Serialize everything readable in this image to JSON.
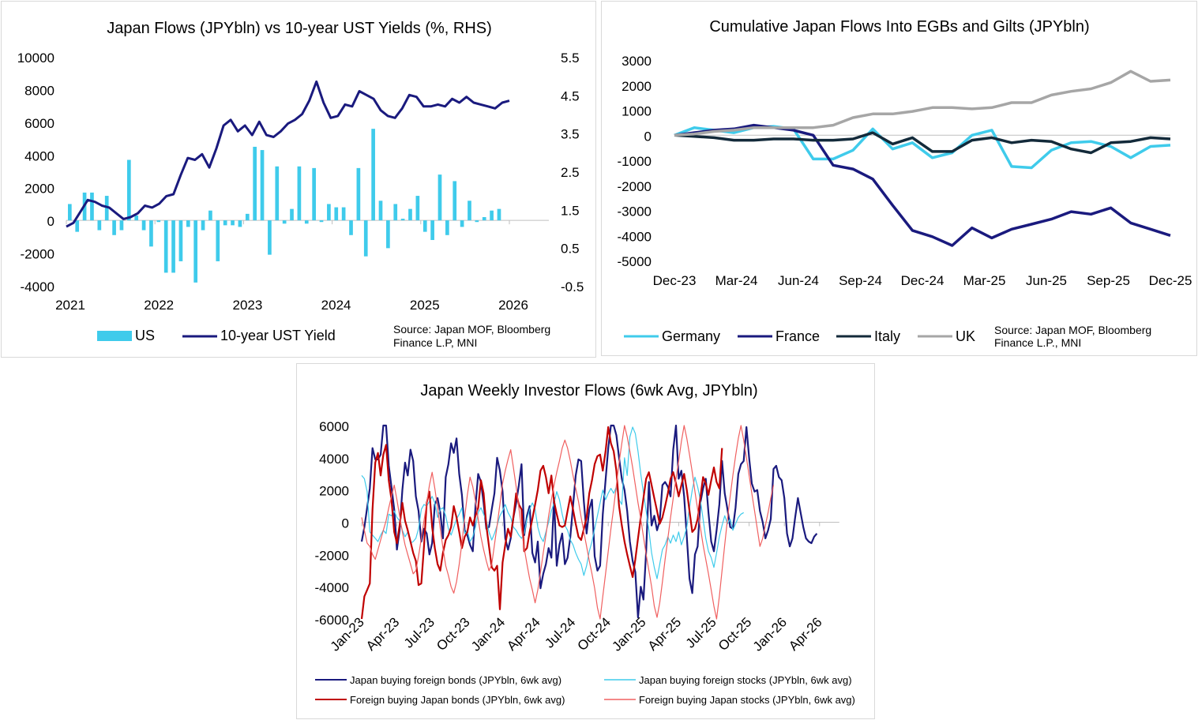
{
  "chart_data": [
    {
      "type": "bar+line",
      "title": "Japan Flows (JPYbln) vs 10-year UST Yields (%, RHS)",
      "x_ticks": [
        "2021",
        "2022",
        "2023",
        "2024",
        "2025",
        "2026"
      ],
      "y_left": {
        "min": -4000,
        "max": 10000,
        "ticks": [
          "10000",
          "8000",
          "6000",
          "4000",
          "2000",
          "0",
          "-2000",
          "-4000"
        ]
      },
      "y_right": {
        "min": -0.5,
        "max": 5.5,
        "ticks": [
          "5.5",
          "4.5",
          "3.5",
          "2.5",
          "1.5",
          "0.5",
          "-0.5"
        ]
      },
      "series": [
        {
          "name": "US",
          "kind": "bar",
          "axis": "left",
          "color": "#3fcbeb",
          "values": [
            1000,
            -700,
            1700,
            1700,
            -600,
            1500,
            -900,
            -600,
            3700,
            300,
            -600,
            -1600,
            -100,
            -3200,
            -3200,
            -2500,
            -400,
            -3800,
            -600,
            600,
            -2500,
            -300,
            -300,
            -400,
            400,
            4500,
            4300,
            -2100,
            3300,
            -200,
            700,
            3300,
            -200,
            3200,
            -100,
            1000,
            800,
            800,
            -900,
            3200,
            -2200,
            5600,
            1200,
            -1700,
            1000,
            100,
            700,
            1500,
            -700,
            -1200,
            2800,
            -900,
            2400,
            -400,
            1200,
            -100,
            200,
            600,
            700
          ]
        },
        {
          "name": "10-year UST Yield",
          "kind": "line",
          "axis": "right",
          "color": "#1a1a7e",
          "values": [
            1.05,
            1.15,
            1.45,
            1.75,
            1.7,
            1.6,
            1.55,
            1.4,
            1.25,
            1.3,
            1.4,
            1.6,
            1.55,
            1.65,
            1.85,
            1.9,
            2.4,
            2.85,
            2.8,
            2.95,
            2.6,
            3.1,
            3.7,
            3.85,
            3.55,
            3.7,
            3.45,
            3.8,
            3.45,
            3.4,
            3.55,
            3.75,
            3.85,
            4.0,
            4.35,
            4.85,
            4.3,
            3.9,
            3.95,
            4.25,
            4.2,
            4.6,
            4.5,
            4.4,
            4.1,
            3.95,
            3.9,
            4.15,
            4.5,
            4.45,
            4.2,
            4.2,
            4.25,
            4.2,
            4.4,
            4.3,
            4.45,
            4.3,
            4.25,
            4.2,
            4.15,
            4.3,
            4.35
          ]
        }
      ],
      "legend": [
        "US",
        "10-year UST Yield"
      ],
      "source": [
        "Source: Japan MOF, Bloomberg",
        "Finance L.P, MNI"
      ]
    },
    {
      "type": "line",
      "title": "Cumulative  Japan Flows Into EGBs and Gilts (JPYbln)",
      "x_ticks": [
        "Dec-23",
        "Mar-24",
        "Jun-24",
        "Sep-24",
        "Dec-24",
        "Mar-25",
        "Jun-25",
        "Sep-25",
        "Dec-25"
      ],
      "y": {
        "min": -5000,
        "max": 3000,
        "ticks": [
          "3000",
          "2000",
          "1000",
          "0",
          "-1000",
          "-2000",
          "-3000",
          "-4000",
          "-5000"
        ]
      },
      "series": [
        {
          "name": "Germany",
          "color": "#3fcbeb",
          "values": [
            0,
            300,
            200,
            100,
            300,
            350,
            250,
            -950,
            -950,
            -600,
            250,
            -550,
            -300,
            -900,
            -700,
            0,
            200,
            -1250,
            -1300,
            -600,
            -300,
            -250,
            -450,
            -900,
            -450,
            -400
          ]
        },
        {
          "name": "France",
          "color": "#1a1a7e",
          "values": [
            0,
            100,
            200,
            250,
            400,
            300,
            200,
            0,
            -1200,
            -1350,
            -1750,
            -2800,
            -3800,
            -4050,
            -4400,
            -3700,
            -4100,
            -3750,
            -3550,
            -3350,
            -3050,
            -3150,
            -2900,
            -3500,
            -3750,
            -4000
          ]
        },
        {
          "name": "Italy",
          "color": "#132a3a",
          "values": [
            0,
            -50,
            -100,
            -200,
            -200,
            -150,
            -150,
            -200,
            -200,
            -150,
            100,
            -350,
            -100,
            -650,
            -650,
            -200,
            -100,
            -300,
            -200,
            -250,
            -550,
            -700,
            -300,
            -250,
            -100,
            -150
          ]
        },
        {
          "name": "UK",
          "color": "#a6a6a6",
          "values": [
            0,
            50,
            150,
            200,
            300,
            300,
            300,
            300,
            400,
            700,
            850,
            850,
            950,
            1100,
            1100,
            1050,
            1100,
            1300,
            1300,
            1600,
            1750,
            1850,
            2100,
            2550,
            2150,
            2200
          ]
        }
      ],
      "legend": [
        "Germany",
        "France",
        "Italy",
        "UK"
      ],
      "source": [
        "Source: Japan MOF, Bloomberg",
        "Finance L.P., MNI"
      ]
    },
    {
      "type": "line",
      "title": "Japan Weekly Investor Flows (6wk Avg, JPYbln)",
      "x_ticks": [
        "Jan-23",
        "Apr-23",
        "Jul-23",
        "Oct-23",
        "Jan-24",
        "Apr-24",
        "Jul-24",
        "Oct-24",
        "Jan-25",
        "Apr-25",
        "Jul-25",
        "Oct-25",
        "Jan-26",
        "Apr-26"
      ],
      "y": {
        "min": -6000,
        "max": 6000,
        "ticks": [
          "6000",
          "4000",
          "2000",
          "0",
          "-2000",
          "-4000",
          "-6000"
        ]
      },
      "series": [
        {
          "name": "Japan buying foreign bonds (JPYbln, 6wk avg)",
          "color": "#1a1a7e",
          "values": [
            -1200,
            -300,
            900,
            2100,
            4600,
            3900,
            3900,
            4200,
            6000,
            6000,
            3500,
            2200,
            800,
            -1700,
            -500,
            2000,
            3700,
            2900,
            4500,
            3800,
            1600,
            700,
            -1200,
            -400,
            -700,
            -2000,
            -1300,
            1100,
            1500,
            600,
            -1000,
            2800,
            3600,
            4900,
            4300,
            5200,
            3000,
            1700,
            -500,
            -800,
            -1400,
            -1800,
            1000,
            3000,
            2500,
            1200,
            -400,
            -300,
            800,
            1800,
            4000,
            3200,
            1900,
            -1000,
            -1700,
            -1000,
            300,
            1200,
            2300,
            3600,
            -800,
            400,
            1000,
            -1900,
            -2500,
            -1200,
            -4100,
            -3200,
            -2600,
            -1600,
            -2200,
            1500,
            -2700,
            -1400,
            -700,
            -2600,
            -2200,
            -900,
            1000,
            2900,
            3900,
            3800,
            1300,
            -700,
            800,
            1400,
            -2100,
            -3000,
            -2700,
            500,
            2600,
            4600,
            6000,
            6000,
            5400,
            4000,
            2700,
            2000,
            700,
            -1200,
            -2400,
            -3100,
            -5900,
            -4000,
            -4800,
            -1800,
            2500,
            -200,
            400,
            -500,
            100,
            2300,
            2500,
            2200,
            1600,
            4500,
            6000,
            2700,
            3200,
            1600,
            -900,
            -3500,
            -4400,
            -2000,
            -1500,
            1200,
            2100,
            2700,
            600,
            -1200,
            -1800,
            -500,
            1100,
            3800,
            1800,
            800,
            -300,
            -400,
            900,
            3000,
            3600,
            3800,
            5900,
            4000,
            2400,
            1900,
            2000,
            700,
            0,
            -1000,
            -500,
            200,
            3300,
            3500,
            2800,
            2600,
            1500,
            -700,
            -1500,
            -1000,
            300,
            1500,
            600,
            -300,
            -1000,
            -1200,
            -1300,
            -900,
            -700
          ]
        },
        {
          "name": "Japan buying foreign stocks (JPYbln, 6wk avg)",
          "color": "#3fcbeb",
          "values": [
            2900,
            2700,
            1900,
            -600,
            -800,
            -1000,
            -1200,
            -800,
            -500,
            -700,
            500,
            400,
            700,
            300,
            100,
            -500,
            -900,
            -600,
            -1300,
            -1200,
            -1000,
            -400,
            800,
            1100,
            1000,
            1300,
            1600,
            1200,
            300,
            800,
            900,
            400,
            -400,
            -800,
            -300,
            200,
            500,
            900,
            -700,
            -500,
            -1200,
            -900,
            -300,
            600,
            900,
            500,
            100,
            -600,
            -1100,
            -700,
            -200,
            400,
            700,
            1100,
            600,
            300,
            -300,
            -500,
            -800,
            -1000,
            -700,
            200,
            800,
            1200,
            800,
            -300,
            -900,
            -1200,
            -600,
            0,
            700,
            1200,
            1900,
            1400,
            500,
            -200,
            -500,
            -1100,
            -1400,
            -1900,
            -2300,
            -2600,
            -3300,
            -2700,
            -1800,
            -1200,
            -400,
            400,
            1200,
            2000,
            1400,
            1800,
            2100,
            1800,
            2200,
            1400,
            1100,
            4000,
            2900,
            5300,
            5900,
            5500,
            4400,
            3000,
            1800,
            700,
            -500,
            -1900,
            -2800,
            -3500,
            -2600,
            -1700,
            -1400,
            -900,
            -1300,
            -800,
            -1200,
            -600,
            -1400,
            -900,
            -300,
            900,
            2000,
            2800,
            2200,
            1400,
            200,
            -1000,
            -1800,
            -2200,
            -2800,
            -1900,
            -900,
            -200,
            400,
            -100,
            200,
            -500,
            -100,
            300,
            500,
            600
          ]
        },
        {
          "name": "Foreign buying Japan bonds (JPYbln, 6wk avg)",
          "color": "#c00000",
          "values": [
            -6100,
            -4600,
            -4200,
            -3800,
            800,
            3700,
            4300,
            2900,
            4200,
            4800,
            2600,
            1400,
            -600,
            -1300,
            -200,
            1200,
            100,
            -500,
            -1200,
            -1900,
            -2400,
            -3900,
            -3800,
            -1500,
            1200,
            1900,
            -300,
            -1600,
            -2600,
            -3000,
            -1900,
            -1100,
            -800,
            -300,
            1000,
            300,
            -600,
            -1600,
            -900,
            -600,
            300,
            -200,
            400,
            900,
            2600,
            1800,
            -200,
            -1500,
            -2800,
            -3000,
            -2700,
            -5400,
            -2500,
            -1400,
            -400,
            -900,
            300,
            1800,
            1100,
            800,
            -1800,
            -1600,
            -600,
            200,
            1100,
            2000,
            3200,
            3500,
            2800,
            1800,
            2900,
            1300,
            500,
            -200,
            -300,
            -200,
            700,
            1600,
            800,
            -100,
            -900,
            -1100,
            -400,
            300,
            1800,
            2600,
            3600,
            4100,
            4200,
            3200,
            4400,
            5900,
            4900,
            4400,
            3200,
            1000,
            -200,
            -1200,
            -2000,
            -2700,
            -3400,
            -2300,
            -1000,
            300,
            1500,
            2700,
            3100,
            2300,
            1500,
            700,
            -100,
            300,
            1000,
            1800,
            2700,
            3100,
            2400,
            1600,
            2300,
            3000,
            2000,
            700,
            -600,
            -400,
            200,
            1500,
            2800,
            2400,
            1700,
            2600,
            3400,
            2500,
            2100,
            4600
          ]
        },
        {
          "name": "Foreign buying Japan stocks (JPYbln, 6wk avg)",
          "color": "#f06060",
          "values": [
            300,
            -500,
            -1300,
            -1500,
            -2000,
            -2300,
            -1700,
            -1100,
            -500,
            100,
            900,
            1600,
            2300,
            1400,
            400,
            -600,
            -1400,
            -2000,
            -2600,
            -3200,
            -3000,
            -2100,
            -1000,
            100,
            1200,
            2300,
            3100,
            2100,
            900,
            -400,
            -1600,
            -2700,
            -3300,
            -4000,
            -4400,
            -3700,
            -2600,
            -1300,
            300,
            1700,
            2800,
            2200,
            1300,
            200,
            -900,
            -1700,
            -2400,
            -3000,
            -2600,
            -1400,
            -200,
            1100,
            2400,
            3200,
            3900,
            4500,
            3400,
            2200,
            900,
            -400,
            -1600,
            -2600,
            -3500,
            -4200,
            -5000,
            -4200,
            -3100,
            -1900,
            -800,
            400,
            1400,
            2300,
            3100,
            3800,
            4600,
            5100,
            4600,
            3800,
            2900,
            2100,
            1300,
            300,
            -600,
            -1500,
            -2400,
            -3200,
            -4100,
            -5300,
            -6000,
            -4600,
            -3200,
            -1800,
            -400,
            900,
            2300,
            3700,
            4900,
            6000,
            5300,
            4400,
            3400,
            2300,
            1200,
            200,
            -900,
            -2000,
            -3000,
            -4000,
            -5200,
            -5900,
            -5000,
            -3700,
            -2300,
            -1000,
            300,
            1500,
            2700,
            3800,
            5000,
            6000,
            5200,
            4200,
            3100,
            1900,
            800,
            -300,
            -1400,
            -2300,
            -3200,
            -4200,
            -5200,
            -6000,
            -4600,
            -3000,
            -1400,
            200,
            1600,
            2900,
            4100,
            5200,
            6000,
            5100,
            4000,
            2900,
            1800,
            700,
            -400,
            -1500,
            -1000,
            -200,
            600,
            1500,
            2300
          ]
        }
      ],
      "legend": [
        "Japan buying foreign bonds (JPYbln, 6wk avg)",
        "Japan buying foreign stocks (JPYbln, 6wk avg)",
        "Foreign buying Japan bonds (JPYbln, 6wk avg)",
        "Foreign buying Japan stocks (JPYbln, 6wk avg)"
      ]
    }
  ]
}
